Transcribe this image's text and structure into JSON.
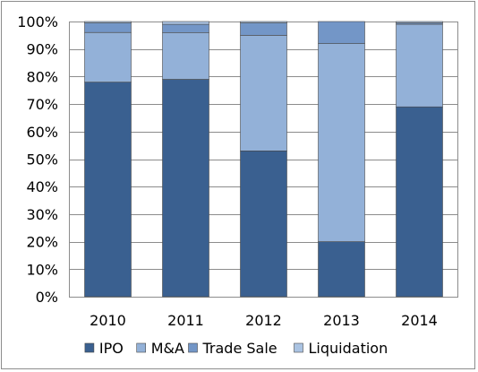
{
  "chart_data": {
    "type": "bar",
    "stacked": true,
    "categories": [
      "2010",
      "2011",
      "2012",
      "2013",
      "2014"
    ],
    "series": [
      {
        "name": "IPO",
        "values": [
          78,
          79,
          53,
          20,
          69
        ],
        "color": "#3a6090"
      },
      {
        "name": "M&A",
        "values": [
          18,
          17,
          42,
          72,
          30
        ],
        "color": "#93b1d8"
      },
      {
        "name": "Trade Sale",
        "values": [
          3.5,
          3,
          4.5,
          8,
          0.5
        ],
        "color": "#7396c7"
      },
      {
        "name": "Liquidation",
        "values": [
          0.5,
          1,
          0.5,
          0,
          0.5
        ],
        "color": "#aac3e2"
      }
    ],
    "ylim": [
      0,
      100
    ],
    "y_ticks": [
      "0%",
      "10%",
      "20%",
      "30%",
      "40%",
      "50%",
      "60%",
      "70%",
      "80%",
      "90%",
      "100%"
    ],
    "y_tick_values": [
      0,
      10,
      20,
      30,
      40,
      50,
      60,
      70,
      80,
      90,
      100
    ],
    "grid": true,
    "legend_position": "bottom",
    "title": "",
    "xlabel": "",
    "ylabel": ""
  }
}
